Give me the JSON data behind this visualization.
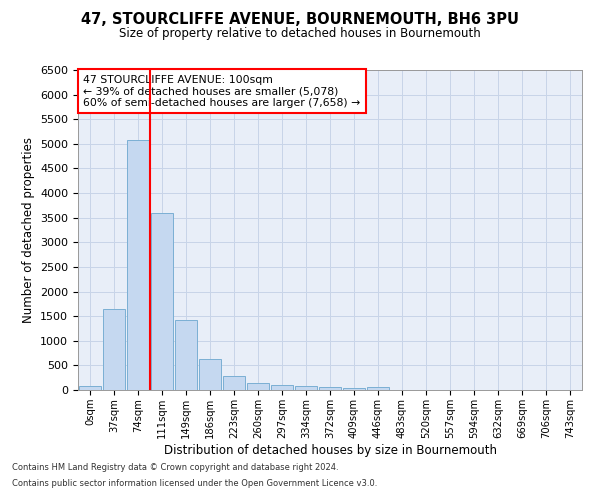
{
  "title": "47, STOURCLIFFE AVENUE, BOURNEMOUTH, BH6 3PU",
  "subtitle": "Size of property relative to detached houses in Bournemouth",
  "xlabel": "Distribution of detached houses by size in Bournemouth",
  "ylabel": "Number of detached properties",
  "footer_line1": "Contains HM Land Registry data © Crown copyright and database right 2024.",
  "footer_line2": "Contains public sector information licensed under the Open Government Licence v3.0.",
  "bar_labels": [
    "0sqm",
    "37sqm",
    "74sqm",
    "111sqm",
    "149sqm",
    "186sqm",
    "223sqm",
    "260sqm",
    "297sqm",
    "334sqm",
    "372sqm",
    "409sqm",
    "446sqm",
    "483sqm",
    "520sqm",
    "557sqm",
    "594sqm",
    "632sqm",
    "669sqm",
    "706sqm",
    "743sqm"
  ],
  "bar_values": [
    75,
    1650,
    5080,
    3600,
    1420,
    620,
    290,
    150,
    110,
    80,
    65,
    40,
    55,
    0,
    0,
    0,
    0,
    0,
    0,
    0,
    0
  ],
  "bar_color": "#c5d8f0",
  "bar_edge_color": "#7bafd4",
  "ylim": [
    0,
    6500
  ],
  "yticks": [
    0,
    500,
    1000,
    1500,
    2000,
    2500,
    3000,
    3500,
    4000,
    4500,
    5000,
    5500,
    6000,
    6500
  ],
  "red_line_x": 3.0,
  "annotation_title": "47 STOURCLIFFE AVENUE: 100sqm",
  "annotation_line2": "← 39% of detached houses are smaller (5,078)",
  "annotation_line3": "60% of semi-detached houses are larger (7,658) →",
  "grid_color": "#c8d4e8",
  "background_color": "#e8eef8"
}
